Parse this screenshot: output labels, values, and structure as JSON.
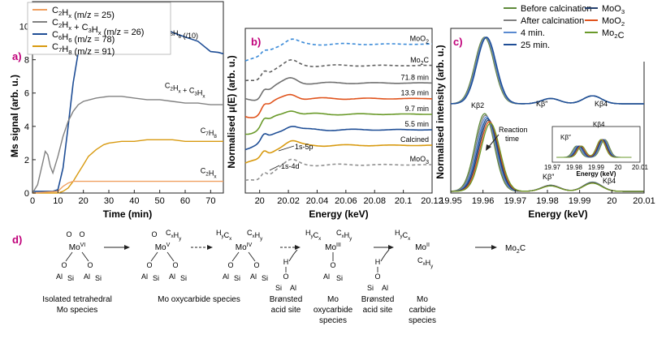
{
  "colors": {
    "ink": "#222222",
    "panel_label": "#c0007a",
    "orange": "#f0a060",
    "grey": "#808080",
    "blue": "#1f4e96",
    "gold": "#d89a10",
    "red": "#e0531c",
    "green": "#6a9a2a",
    "navy": "#24406e",
    "light_blue": "#5a8ad0",
    "olive": "#5e8a3a"
  },
  "chart_data": [
    {
      "id": "a",
      "type": "line",
      "panel_label": "a)",
      "xlabel": "Time (min)",
      "ylabel": "Ms signal (arb. u.)",
      "xlim": [
        0,
        75
      ],
      "ylim": [
        0,
        11
      ],
      "xticks": [
        "0",
        "10",
        "20",
        "30",
        "40",
        "50",
        "60",
        "70"
      ],
      "yticks": [
        "0",
        "2",
        "4",
        "6",
        "8",
        "10"
      ],
      "legend": {
        "placement": "top-left",
        "entries": [
          {
            "pre": "C",
            "s1": "2",
            "mid": "H",
            "s2": "x",
            "post": " (m/z = 25)",
            "color": "#f0a060"
          },
          {
            "pre": "C",
            "s1": "2",
            "mid": "H",
            "s2": "x",
            "post": " + C",
            "s3": "3",
            "mid2": "H",
            "s4": "x",
            "post2": " (m/z = 26)",
            "color": "#808080"
          },
          {
            "pre": "C",
            "s1": "6",
            "mid": "H",
            "s2": "6",
            "post": " (m/z = 78)",
            "color": "#1f4e96"
          },
          {
            "pre": "C",
            "s1": "7",
            "mid": "H",
            "s2": "8",
            "post": " (m/z = 91)",
            "color": "#d89a10"
          }
        ]
      },
      "series": [
        {
          "name": "C6H6 (/10)",
          "label_main": "C",
          "label_parts": [
            [
              "C",
              ""
            ],
            [
              "6",
              "sub"
            ],
            [
              "H",
              ""
            ],
            [
              "6",
              "sub"
            ],
            [
              " (/10)",
              ""
            ]
          ],
          "color": "#1f4e96",
          "x": [
            0,
            5,
            8,
            10,
            12,
            14,
            16,
            18,
            20,
            22,
            25,
            28,
            30,
            33,
            36,
            40,
            45,
            50,
            55,
            60,
            65,
            70,
            73,
            75
          ],
          "y": [
            0.1,
            0.1,
            0.1,
            0.2,
            1.5,
            4.0,
            6.5,
            8.5,
            9.7,
            10.2,
            10.5,
            10.8,
            10.9,
            11.0,
            10.8,
            10.6,
            10.3,
            10.0,
            9.7,
            9.4,
            9.0,
            8.6,
            8.4,
            8.3
          ]
        },
        {
          "name": "C2Hx + C3Hx",
          "color": "#808080",
          "x": [
            0,
            2,
            4,
            5,
            6,
            7,
            8,
            10,
            12,
            14,
            16,
            18,
            20,
            25,
            30,
            35,
            40,
            45,
            50,
            55,
            60,
            65,
            70,
            75
          ],
          "y": [
            0.0,
            0.5,
            1.8,
            2.5,
            2.3,
            1.6,
            1.2,
            2.2,
            3.4,
            4.3,
            4.9,
            5.3,
            5.5,
            5.7,
            5.8,
            5.8,
            5.7,
            5.6,
            5.6,
            5.5,
            5.4,
            5.4,
            5.3,
            5.3
          ]
        },
        {
          "name": "C7H8",
          "color": "#d89a10",
          "x": [
            0,
            10,
            12,
            14,
            16,
            18,
            20,
            22,
            25,
            28,
            30,
            35,
            40,
            45,
            50,
            55,
            60,
            65,
            70,
            75
          ],
          "y": [
            0.0,
            0.0,
            0.1,
            0.3,
            0.7,
            1.2,
            1.7,
            2.2,
            2.6,
            2.9,
            3.0,
            3.1,
            3.1,
            3.2,
            3.2,
            3.2,
            3.1,
            3.1,
            3.1,
            3.1
          ]
        },
        {
          "name": "C2Hx",
          "color": "#f0a060",
          "x": [
            0,
            10,
            12,
            14,
            16,
            18,
            20,
            25,
            30,
            40,
            50,
            60,
            70,
            75
          ],
          "y": [
            0.0,
            0.1,
            0.4,
            0.6,
            0.7,
            0.7,
            0.7,
            0.7,
            0.7,
            0.7,
            0.7,
            0.7,
            0.7,
            0.7
          ]
        }
      ],
      "curve_labels": [
        {
          "parts": [
            [
              "C",
              ""
            ],
            [
              "6",
              "sub"
            ],
            [
              "H",
              ""
            ],
            [
              "6",
              "sub"
            ],
            [
              " (/10)",
              ""
            ]
          ],
          "x": 52,
          "y": 9.6
        },
        {
          "parts": [
            [
              "C",
              ""
            ],
            [
              "2",
              "sub"
            ],
            [
              "H",
              ""
            ],
            [
              "x",
              "sub"
            ],
            [
              " + C",
              ""
            ],
            [
              "3",
              "sub"
            ],
            [
              "H",
              ""
            ],
            [
              "x",
              "sub"
            ]
          ],
          "x": 52,
          "y": 6.3
        },
        {
          "parts": [
            [
              "C",
              ""
            ],
            [
              "7",
              "sub"
            ],
            [
              "H",
              ""
            ],
            [
              "8",
              "sub"
            ]
          ],
          "x": 66,
          "y": 3.6
        },
        {
          "parts": [
            [
              "C",
              ""
            ],
            [
              "2",
              "sub"
            ],
            [
              "H",
              ""
            ],
            [
              "x",
              "sub"
            ]
          ],
          "x": 66,
          "y": 1.2
        }
      ]
    },
    {
      "id": "b",
      "type": "line",
      "panel_label": "b)",
      "xlabel": "Energy (keV)",
      "ylabel": "Normalised μ(E) (arb. u.)",
      "xlim": [
        19.99,
        20.12
      ],
      "xticks": [
        "20",
        "20.02",
        "20.04",
        "20.06",
        "20.08",
        "20.1",
        "20.12"
      ],
      "xtick_values": [
        20,
        20.02,
        20.04,
        20.06,
        20.08,
        20.1,
        20.12
      ],
      "series": [
        {
          "name": "MoO2",
          "color": "#3a8ad8",
          "dashed": true,
          "offset": 7.4
        },
        {
          "name": "Mo2C",
          "color": "#606060",
          "dashed": true,
          "offset": 6.3
        },
        {
          "name": "71.8 min",
          "color": "#707070",
          "dashed": false,
          "offset": 5.4
        },
        {
          "name": "13.9 min",
          "color": "#e0531c",
          "dashed": false,
          "offset": 4.6
        },
        {
          "name": "9.7 min",
          "color": "#6a9a2a",
          "dashed": false,
          "offset": 3.8
        },
        {
          "name": "5.5 min",
          "color": "#1f4e96",
          "dashed": false,
          "offset": 3.0
        },
        {
          "name": "Calcined",
          "color": "#d89a10",
          "dashed": false,
          "offset": 2.2
        },
        {
          "name": "MoO3",
          "color": "#909090",
          "dashed": true,
          "offset": 1.2
        }
      ],
      "annotations": [
        {
          "text": "1s-5p"
        },
        {
          "text": "1s-4d"
        }
      ]
    },
    {
      "id": "c",
      "type": "line",
      "panel_label": "c)",
      "xlabel": "Energy (keV)",
      "ylabel": "Normalised intensity (arb. u.)",
      "xlim": [
        19.95,
        20.01
      ],
      "xticks": [
        "19.95",
        "19.96",
        "19.97",
        "19.98",
        "19.99",
        "20",
        "20.01"
      ],
      "legend": {
        "placement": "top",
        "entries": [
          {
            "label": "Before calcination",
            "color": "#5e8a3a"
          },
          {
            "label": "After calcination",
            "color": "#808080"
          },
          {
            "label": "4 min.",
            "color": "#5a8ad0"
          },
          {
            "label": "25 min.",
            "color": "#1f4e96"
          },
          {
            "label": "MoO3",
            "parts": [
              [
                "MoO",
                ""
              ],
              [
                "3",
                "sub"
              ]
            ],
            "color": "#24406e"
          },
          {
            "label": "MoO2",
            "parts": [
              [
                "MoO",
                ""
              ],
              [
                "2",
                "sub"
              ]
            ],
            "color": "#e0531c"
          },
          {
            "label": "Mo2C",
            "parts": [
              [
                "Mo",
                ""
              ],
              [
                "2",
                "sub"
              ],
              [
                "C",
                ""
              ]
            ],
            "color": "#6a9a2a"
          }
        ]
      },
      "annotations": [
        {
          "text": "Kβ″",
          "where": "upper"
        },
        {
          "text": "Kβ4",
          "where": "upper"
        },
        {
          "text": "Kβ2",
          "where": "lower"
        },
        {
          "text": "Kβ″",
          "where": "lower"
        },
        {
          "text": "Kβ4",
          "where": "lower"
        },
        {
          "text": "Reaction time",
          "lines": [
            "Reaction",
            "time"
          ]
        }
      ],
      "inset": {
        "xlabel": "Energy (keV)",
        "xticks": [
          "19.97",
          "19.98",
          "19.99",
          "20",
          "20.01"
        ],
        "annotations": [
          "Kβ″",
          "Kβ4"
        ]
      }
    }
  ],
  "scheme": {
    "panel_label": "d)",
    "species": [
      {
        "oxidation": "VI",
        "captions": [
          "Isolated tetrahedral",
          "Mo species"
        ]
      },
      {
        "oxidation": "V",
        "captions": [
          "Mo oxycarbide species"
        ]
      },
      {
        "oxidation": "IV",
        "captions": []
      },
      {
        "oxidation": "III",
        "captions": [
          "Mo",
          "oxycarbide",
          "species"
        ]
      },
      {
        "oxidation": "II",
        "captions": [
          "Mo",
          "carbide",
          "species"
        ]
      }
    ],
    "acid_site_caption": [
      "Brønsted",
      "acid site"
    ],
    "product": "Mo2C"
  }
}
